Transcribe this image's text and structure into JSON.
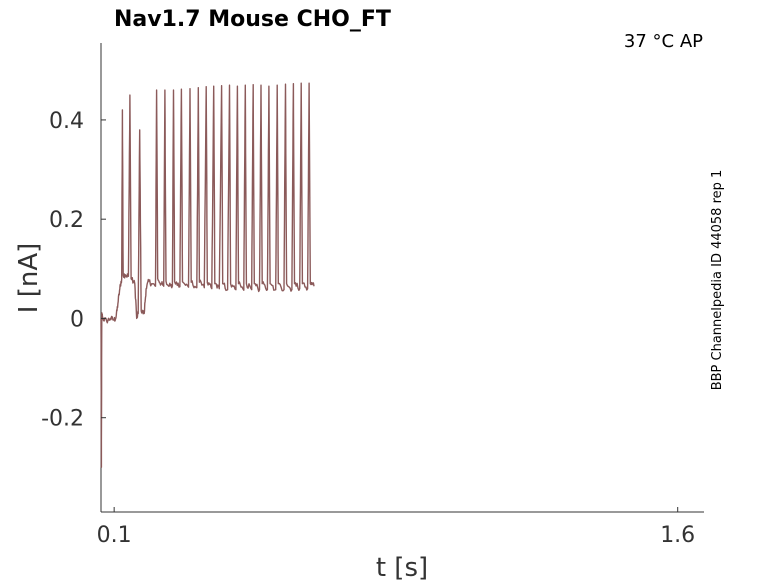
{
  "chart_data": {
    "type": "line",
    "title": "Nav1.7  Mouse  CHO_FT",
    "condition": "37 °C  AP",
    "side_note": "BBP Channelpedia ID 44058 rep 1",
    "xlabel": "t [s]",
    "ylabel": "I [nA]",
    "xlim": [
      0.065,
      1.67
    ],
    "ylim": [
      -0.39,
      0.555
    ],
    "x_ticks": [
      {
        "value": 0.1,
        "label": "0.1"
      },
      {
        "value": 1.6,
        "label": "1.6"
      }
    ],
    "y_ticks": [
      {
        "value": 0.4,
        "label": "0.4"
      },
      {
        "value": 0.2,
        "label": "0.2"
      },
      {
        "value": 0,
        "label": "0"
      },
      {
        "value": -0.2,
        "label": "-0.2"
      }
    ],
    "grid": false,
    "line_color": "#8B5A5A",
    "series": [
      {
        "values": [
          [
            0.065,
            0.0
          ],
          [
            0.066,
            -0.3
          ],
          [
            0.067,
            0.01
          ],
          [
            0.07,
            0.0
          ],
          [
            0.08,
            -0.005
          ],
          [
            0.09,
            0.0
          ],
          [
            0.1,
            -0.003
          ],
          [
            0.105,
            0.002
          ],
          [
            0.11,
            0.03
          ],
          [
            0.115,
            0.06
          ],
          [
            0.12,
            0.08
          ],
          [
            0.122,
            0.42
          ],
          [
            0.124,
            0.087
          ],
          [
            0.13,
            0.088
          ],
          [
            0.138,
            0.085
          ],
          [
            0.142,
            0.45
          ],
          [
            0.145,
            0.08
          ],
          [
            0.155,
            0.07
          ],
          [
            0.16,
            0.0
          ],
          [
            0.164,
            0.01
          ],
          [
            0.168,
            0.38
          ],
          [
            0.172,
            0.015
          ],
          [
            0.18,
            0.01
          ],
          [
            0.185,
            0.06
          ],
          [
            0.192,
            0.075
          ],
          [
            0.2,
            0.07
          ],
          [
            0.21,
            0.065
          ],
          [
            0.213,
            0.46
          ],
          [
            0.216,
            0.08
          ],
          [
            0.225,
            0.07
          ],
          [
            0.232,
            0.065
          ],
          [
            0.235,
            0.46
          ],
          [
            0.238,
            0.075
          ],
          [
            0.25,
            0.066
          ],
          [
            0.255,
            0.065
          ],
          [
            0.258,
            0.46
          ],
          [
            0.261,
            0.074
          ],
          [
            0.275,
            0.064
          ],
          [
            0.279,
            0.462
          ],
          [
            0.282,
            0.074
          ],
          [
            0.298,
            0.063
          ],
          [
            0.302,
            0.463
          ],
          [
            0.305,
            0.073
          ],
          [
            0.32,
            0.062
          ],
          [
            0.324,
            0.465
          ],
          [
            0.327,
            0.073
          ],
          [
            0.34,
            0.062
          ],
          [
            0.345,
            0.467
          ],
          [
            0.348,
            0.072
          ],
          [
            0.36,
            0.06
          ],
          [
            0.365,
            0.468
          ],
          [
            0.368,
            0.07
          ],
          [
            0.38,
            0.06
          ],
          [
            0.386,
            0.469
          ],
          [
            0.389,
            0.07
          ],
          [
            0.402,
            0.058
          ],
          [
            0.407,
            0.47
          ],
          [
            0.41,
            0.07
          ],
          [
            0.424,
            0.058
          ],
          [
            0.428,
            0.468
          ],
          [
            0.431,
            0.07
          ],
          [
            0.445,
            0.057
          ],
          [
            0.449,
            0.47
          ],
          [
            0.452,
            0.07
          ],
          [
            0.466,
            0.058
          ],
          [
            0.47,
            0.471
          ],
          [
            0.473,
            0.07
          ],
          [
            0.487,
            0.058
          ],
          [
            0.491,
            0.47
          ],
          [
            0.494,
            0.07
          ],
          [
            0.508,
            0.058
          ],
          [
            0.512,
            0.468
          ],
          [
            0.515,
            0.07
          ],
          [
            0.53,
            0.058
          ],
          [
            0.534,
            0.47
          ],
          [
            0.537,
            0.07
          ],
          [
            0.552,
            0.058
          ],
          [
            0.556,
            0.472
          ],
          [
            0.559,
            0.07
          ],
          [
            0.573,
            0.058
          ],
          [
            0.577,
            0.473
          ],
          [
            0.58,
            0.07
          ],
          [
            0.594,
            0.06
          ],
          [
            0.598,
            0.474
          ],
          [
            0.601,
            0.07
          ],
          [
            0.615,
            0.06
          ],
          [
            0.619,
            0.474
          ],
          [
            0.622,
            0.07
          ],
          [
            0.632,
            0.065
          ]
        ]
      }
    ]
  }
}
